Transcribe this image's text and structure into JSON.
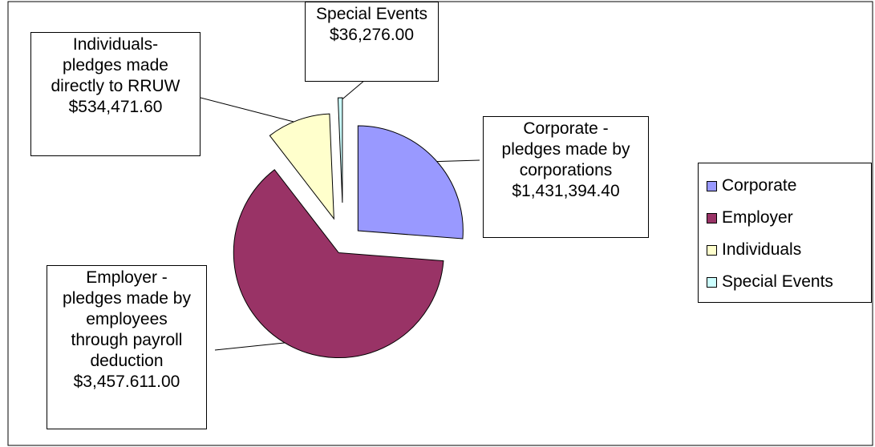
{
  "chart_data": {
    "type": "pie",
    "title": "",
    "unit": "$",
    "slices": [
      {
        "legend": "Corporate",
        "value": 1431394.4,
        "color": "#9999ff",
        "label_lines": [
          "Corporate -",
          "pledges made by",
          "corporations",
          "$1,431,394.40"
        ]
      },
      {
        "legend": "Employer",
        "value": 3457611.0,
        "color": "#993366",
        "label_lines": [
          "Employer -",
          "pledges made by",
          "employees",
          "through payroll",
          "deduction",
          "$3,457.611.00"
        ]
      },
      {
        "legend": "Individuals",
        "value": 534471.6,
        "color": "#ffffcc",
        "label_lines": [
          "Individuals-",
          "pledges made",
          "directly to RRUW",
          "$534,471.60"
        ]
      },
      {
        "legend": "Special Events",
        "value": 36276.0,
        "color": "#ccffff",
        "label_lines": [
          "Special Events",
          "$36,276.00"
        ]
      }
    ],
    "legend_position": "right",
    "exploded": true
  }
}
